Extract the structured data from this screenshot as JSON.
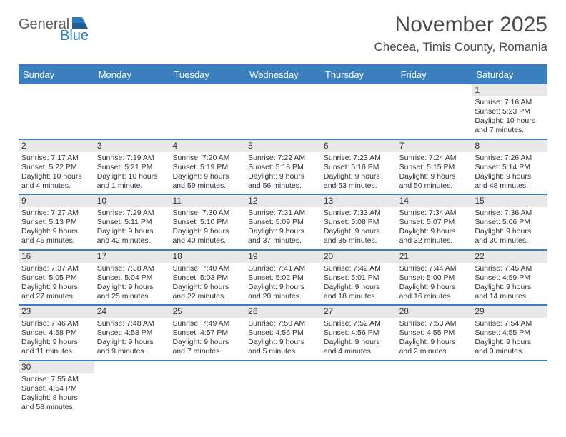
{
  "logo": {
    "word1": "General",
    "word2": "Blue",
    "word1_color": "#5a5a5a",
    "word2_color": "#2b7bbf",
    "icon_color": "#2b7bbf"
  },
  "title": "November 2025",
  "location": "Checea, Timis County, Romania",
  "colors": {
    "header_bg": "#3b7fbf",
    "header_text": "#ffffff",
    "daynum_bg": "#e8e8e8",
    "border": "#3b7fbf",
    "text": "#333333",
    "bg": "#ffffff"
  },
  "day_headers": [
    "Sunday",
    "Monday",
    "Tuesday",
    "Wednesday",
    "Thursday",
    "Friday",
    "Saturday"
  ],
  "weeks": [
    {
      "nums": [
        "",
        "",
        "",
        "",
        "",
        "",
        "1"
      ],
      "cells": [
        {
          "sunrise": "",
          "sunset": "",
          "daylight": ""
        },
        {
          "sunrise": "",
          "sunset": "",
          "daylight": ""
        },
        {
          "sunrise": "",
          "sunset": "",
          "daylight": ""
        },
        {
          "sunrise": "",
          "sunset": "",
          "daylight": ""
        },
        {
          "sunrise": "",
          "sunset": "",
          "daylight": ""
        },
        {
          "sunrise": "",
          "sunset": "",
          "daylight": ""
        },
        {
          "sunrise": "Sunrise: 7:16 AM",
          "sunset": "Sunset: 5:23 PM",
          "daylight": "Daylight: 10 hours and 7 minutes."
        }
      ]
    },
    {
      "nums": [
        "2",
        "3",
        "4",
        "5",
        "6",
        "7",
        "8"
      ],
      "cells": [
        {
          "sunrise": "Sunrise: 7:17 AM",
          "sunset": "Sunset: 5:22 PM",
          "daylight": "Daylight: 10 hours and 4 minutes."
        },
        {
          "sunrise": "Sunrise: 7:19 AM",
          "sunset": "Sunset: 5:21 PM",
          "daylight": "Daylight: 10 hours and 1 minute."
        },
        {
          "sunrise": "Sunrise: 7:20 AM",
          "sunset": "Sunset: 5:19 PM",
          "daylight": "Daylight: 9 hours and 59 minutes."
        },
        {
          "sunrise": "Sunrise: 7:22 AM",
          "sunset": "Sunset: 5:18 PM",
          "daylight": "Daylight: 9 hours and 56 minutes."
        },
        {
          "sunrise": "Sunrise: 7:23 AM",
          "sunset": "Sunset: 5:16 PM",
          "daylight": "Daylight: 9 hours and 53 minutes."
        },
        {
          "sunrise": "Sunrise: 7:24 AM",
          "sunset": "Sunset: 5:15 PM",
          "daylight": "Daylight: 9 hours and 50 minutes."
        },
        {
          "sunrise": "Sunrise: 7:26 AM",
          "sunset": "Sunset: 5:14 PM",
          "daylight": "Daylight: 9 hours and 48 minutes."
        }
      ]
    },
    {
      "nums": [
        "9",
        "10",
        "11",
        "12",
        "13",
        "14",
        "15"
      ],
      "cells": [
        {
          "sunrise": "Sunrise: 7:27 AM",
          "sunset": "Sunset: 5:13 PM",
          "daylight": "Daylight: 9 hours and 45 minutes."
        },
        {
          "sunrise": "Sunrise: 7:29 AM",
          "sunset": "Sunset: 5:11 PM",
          "daylight": "Daylight: 9 hours and 42 minutes."
        },
        {
          "sunrise": "Sunrise: 7:30 AM",
          "sunset": "Sunset: 5:10 PM",
          "daylight": "Daylight: 9 hours and 40 minutes."
        },
        {
          "sunrise": "Sunrise: 7:31 AM",
          "sunset": "Sunset: 5:09 PM",
          "daylight": "Daylight: 9 hours and 37 minutes."
        },
        {
          "sunrise": "Sunrise: 7:33 AM",
          "sunset": "Sunset: 5:08 PM",
          "daylight": "Daylight: 9 hours and 35 minutes."
        },
        {
          "sunrise": "Sunrise: 7:34 AM",
          "sunset": "Sunset: 5:07 PM",
          "daylight": "Daylight: 9 hours and 32 minutes."
        },
        {
          "sunrise": "Sunrise: 7:36 AM",
          "sunset": "Sunset: 5:06 PM",
          "daylight": "Daylight: 9 hours and 30 minutes."
        }
      ]
    },
    {
      "nums": [
        "16",
        "17",
        "18",
        "19",
        "20",
        "21",
        "22"
      ],
      "cells": [
        {
          "sunrise": "Sunrise: 7:37 AM",
          "sunset": "Sunset: 5:05 PM",
          "daylight": "Daylight: 9 hours and 27 minutes."
        },
        {
          "sunrise": "Sunrise: 7:38 AM",
          "sunset": "Sunset: 5:04 PM",
          "daylight": "Daylight: 9 hours and 25 minutes."
        },
        {
          "sunrise": "Sunrise: 7:40 AM",
          "sunset": "Sunset: 5:03 PM",
          "daylight": "Daylight: 9 hours and 22 minutes."
        },
        {
          "sunrise": "Sunrise: 7:41 AM",
          "sunset": "Sunset: 5:02 PM",
          "daylight": "Daylight: 9 hours and 20 minutes."
        },
        {
          "sunrise": "Sunrise: 7:42 AM",
          "sunset": "Sunset: 5:01 PM",
          "daylight": "Daylight: 9 hours and 18 minutes."
        },
        {
          "sunrise": "Sunrise: 7:44 AM",
          "sunset": "Sunset: 5:00 PM",
          "daylight": "Daylight: 9 hours and 16 minutes."
        },
        {
          "sunrise": "Sunrise: 7:45 AM",
          "sunset": "Sunset: 4:59 PM",
          "daylight": "Daylight: 9 hours and 14 minutes."
        }
      ]
    },
    {
      "nums": [
        "23",
        "24",
        "25",
        "26",
        "27",
        "28",
        "29"
      ],
      "cells": [
        {
          "sunrise": "Sunrise: 7:46 AM",
          "sunset": "Sunset: 4:58 PM",
          "daylight": "Daylight: 9 hours and 11 minutes."
        },
        {
          "sunrise": "Sunrise: 7:48 AM",
          "sunset": "Sunset: 4:58 PM",
          "daylight": "Daylight: 9 hours and 9 minutes."
        },
        {
          "sunrise": "Sunrise: 7:49 AM",
          "sunset": "Sunset: 4:57 PM",
          "daylight": "Daylight: 9 hours and 7 minutes."
        },
        {
          "sunrise": "Sunrise: 7:50 AM",
          "sunset": "Sunset: 4:56 PM",
          "daylight": "Daylight: 9 hours and 5 minutes."
        },
        {
          "sunrise": "Sunrise: 7:52 AM",
          "sunset": "Sunset: 4:56 PM",
          "daylight": "Daylight: 9 hours and 4 minutes."
        },
        {
          "sunrise": "Sunrise: 7:53 AM",
          "sunset": "Sunset: 4:55 PM",
          "daylight": "Daylight: 9 hours and 2 minutes."
        },
        {
          "sunrise": "Sunrise: 7:54 AM",
          "sunset": "Sunset: 4:55 PM",
          "daylight": "Daylight: 9 hours and 0 minutes."
        }
      ]
    },
    {
      "nums": [
        "30",
        "",
        "",
        "",
        "",
        "",
        ""
      ],
      "cells": [
        {
          "sunrise": "Sunrise: 7:55 AM",
          "sunset": "Sunset: 4:54 PM",
          "daylight": "Daylight: 8 hours and 58 minutes."
        },
        {
          "sunrise": "",
          "sunset": "",
          "daylight": ""
        },
        {
          "sunrise": "",
          "sunset": "",
          "daylight": ""
        },
        {
          "sunrise": "",
          "sunset": "",
          "daylight": ""
        },
        {
          "sunrise": "",
          "sunset": "",
          "daylight": ""
        },
        {
          "sunrise": "",
          "sunset": "",
          "daylight": ""
        },
        {
          "sunrise": "",
          "sunset": "",
          "daylight": ""
        }
      ]
    }
  ]
}
